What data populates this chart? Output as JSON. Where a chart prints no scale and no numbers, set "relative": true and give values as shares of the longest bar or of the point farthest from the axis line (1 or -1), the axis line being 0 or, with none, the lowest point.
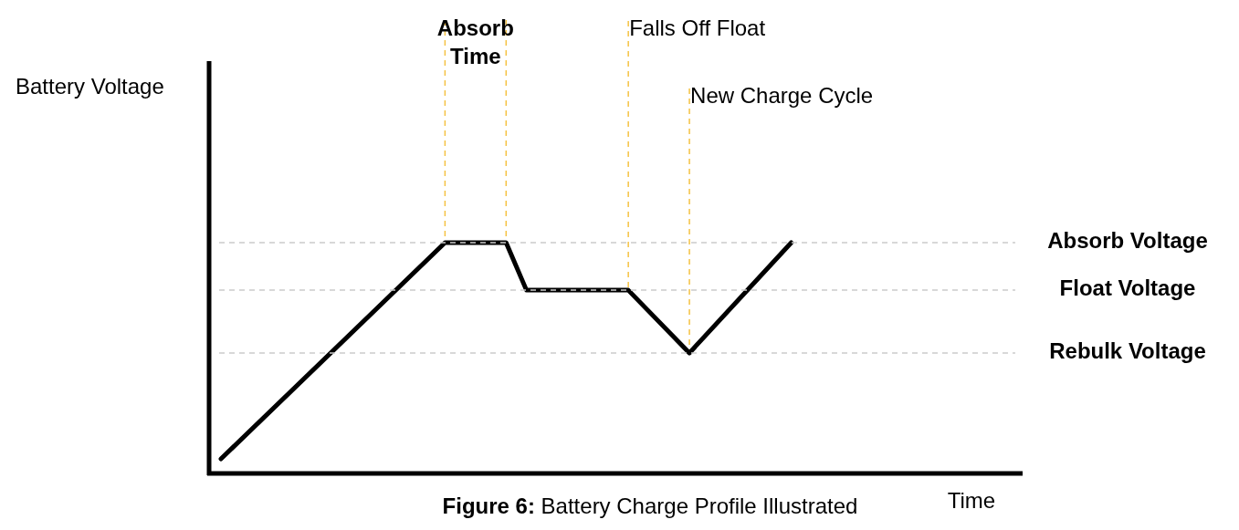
{
  "chart_data": {
    "type": "line",
    "relative": true,
    "xlabel": "Time",
    "categories": [
      null,
      null,
      null,
      null,
      null,
      null,
      null,
      null,
      null,
      null,
      null,
      null,
      null,
      null,
      null,
      null,
      null,
      null,
      null,
      null,
      null,
      null,
      null,
      null,
      null,
      null,
      null,
      null,
      null,
      null,
      null,
      null,
      null,
      null,
      null,
      null,
      null,
      null,
      null,
      null
    ],
    "series": [
      {
        "color": "#000000",
        "values": [
          0.063,
          null,
          null,
          null,
          null,
          null,
          null,
          null,
          null,
          null,
          null,
          1,
          null,
          null,
          1,
          0.794,
          null,
          null,
          null,
          null,
          0.794,
          null,
          null,
          0.522,
          null,
          null,
          null,
          null,
          1,
          null,
          null,
          null,
          null,
          null,
          null,
          null,
          null,
          null,
          null,
          null
        ]
      }
    ],
    "ref_lines": [
      {
        "axis": "y",
        "value": 1,
        "label": "Absorb Voltage",
        "color": "#cccccc",
        "line_style": "dashed"
      },
      {
        "axis": "y",
        "value": 0.794,
        "label": "Float Voltage",
        "color": "#cccccc",
        "line_style": "dashed"
      },
      {
        "axis": "y",
        "value": 0.522,
        "label": "Rebulk Voltage",
        "color": "#cccccc",
        "line_style": "dashed"
      }
    ],
    "annotations": [
      "Battery Voltage",
      "Absorb Time",
      "Falls Off Float",
      "New Charge Cycle",
      "Figure 6: Battery Charge Profile Illustrated"
    ]
  }
}
